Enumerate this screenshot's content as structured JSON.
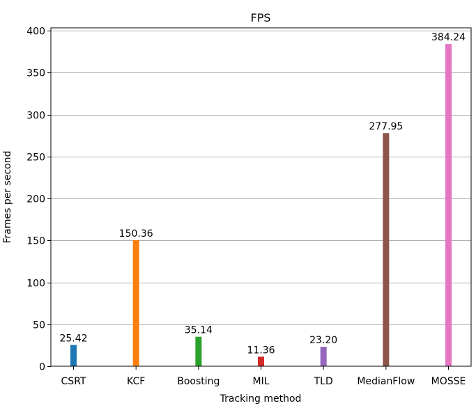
{
  "chart_data": {
    "type": "bar",
    "title": "FPS",
    "xlabel": "Tracking method",
    "ylabel": "Frames per second",
    "categories": [
      "CSRT",
      "KCF",
      "Boosting",
      "MIL",
      "TLD",
      "MedianFlow",
      "MOSSE"
    ],
    "values": [
      25.42,
      150.36,
      35.14,
      11.36,
      23.2,
      277.95,
      384.24
    ],
    "data_labels": [
      "25.42",
      "150.36",
      "35.14",
      "11.36",
      "23.20",
      "277.95",
      "384.24"
    ],
    "colors": [
      "#1f77b4",
      "#ff7f0e",
      "#2ca02c",
      "#d62728",
      "#9467bd",
      "#8c564b",
      "#e377c2"
    ],
    "ylim": [
      0,
      403.45
    ],
    "yticks": [
      0,
      50,
      100,
      150,
      200,
      250,
      300,
      350,
      400
    ],
    "grid": "y",
    "legend": "none"
  }
}
